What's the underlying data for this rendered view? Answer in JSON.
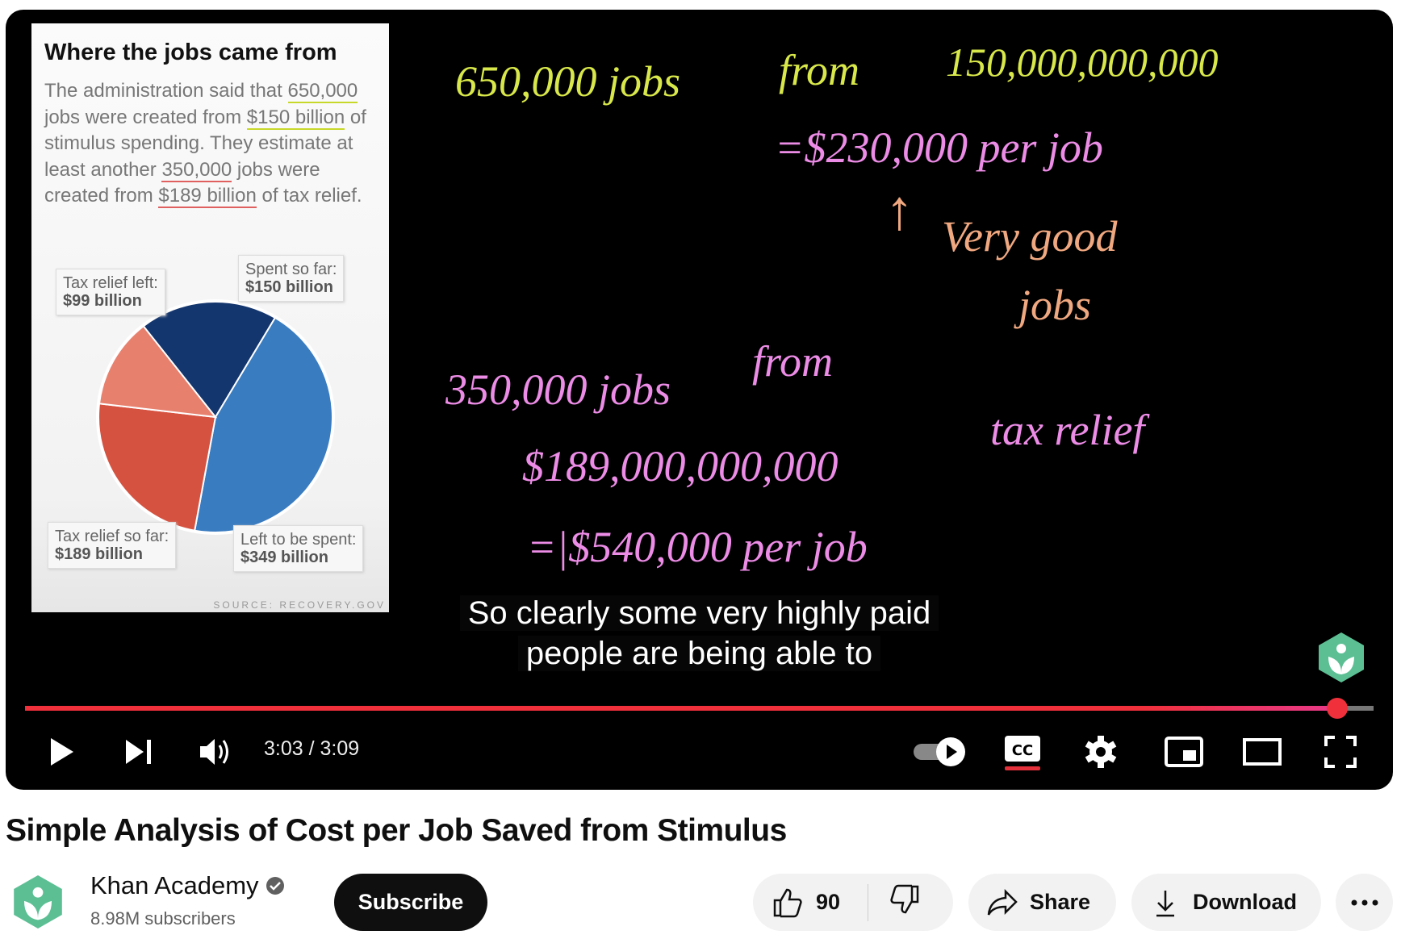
{
  "video": {
    "slide": {
      "title": "Where the jobs came from",
      "text_parts": [
        "The administration said that ",
        "650,000",
        " jobs were created from ",
        "$150 billion",
        " of stimulus spending. They estimate at least another ",
        "350,000",
        " jobs were created from ",
        "$189 billion",
        " of tax relief."
      ],
      "source": "SOURCE: RECOVERY.GOV",
      "chart_data": {
        "type": "pie",
        "categories": [
          "Spent so far",
          "Left to be spent",
          "Tax relief so far",
          "Tax relief left"
        ],
        "values": [
          150,
          349,
          189,
          99
        ],
        "unit": "billion",
        "labels": [
          {
            "line1": "Spent so far:",
            "line2": "$150 billion"
          },
          {
            "line1": "Left to be spent:",
            "line2": "$349 billion"
          },
          {
            "line1": "Tax relief so far:",
            "line2": "$189 billion"
          },
          {
            "line1": "Tax relief left:",
            "line2": "$99 billion"
          }
        ],
        "colors": [
          "#14366e",
          "#3a7cc0",
          "#d65240",
          "#e8806e"
        ]
      }
    },
    "handwriting": {
      "l1a": "650,000 jobs",
      "l1b": "from",
      "l1c": "150,000,000,000",
      "l2": "=$230,000 per job",
      "arrow": "↑",
      "l3a": "Very good",
      "l3b": "jobs",
      "l4a": "350,000 jobs",
      "l4b": "from",
      "l5a": "$189,000,000,000",
      "l5b": "tax relief",
      "l6": "=|$540,000 per job"
    },
    "captions": [
      "So clearly some very highly paid",
      "people are being able to"
    ],
    "progress_percent": 97.3,
    "time": "3:03 / 3:09",
    "colors": {
      "progress": "#f0303a",
      "handwriting_green": "#d8e84a",
      "handwriting_pink": "#ec8ce6",
      "handwriting_orange": "#f0a880"
    }
  },
  "meta": {
    "title": "Simple Analysis of Cost per Job Saved from Stimulus",
    "channel": "Khan Academy",
    "subscribers": "8.98M subscribers",
    "subscribe_label": "Subscribe",
    "likes": "90",
    "share_label": "Share",
    "download_label": "Download",
    "brand_color": "#5cbf94"
  }
}
